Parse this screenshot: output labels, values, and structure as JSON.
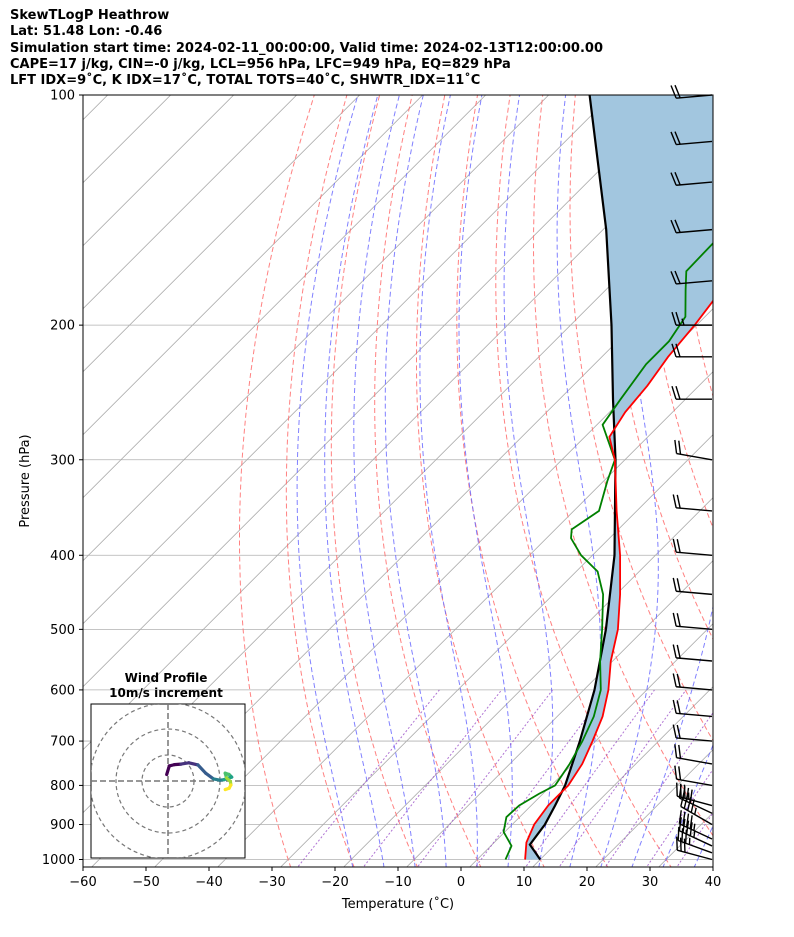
{
  "header": {
    "lines": [
      "SkewTLogP Heathrow",
      "Lat: 51.48   Lon: -0.46",
      "Simulation start time: 2024-02-11_00:00:00, Valid time: 2024-02-13T12:00:00.00",
      "CAPE=17 j/kg, CIN=-0 j/kg, LCL=956 hPa, LFC=949 hPa, EQ=829 hPa",
      "LFT IDX=9˚C, K IDX=17˚C, TOTAL TOTS=40˚C, SHWTR_IDX=11˚C"
    ]
  },
  "chart_data": {
    "type": "line",
    "subtype": "skew-t log-p",
    "xlabel": "Temperature (˚C)",
    "ylabel": "Pressure (hPa)",
    "x_ticks": [
      -60,
      -50,
      -40,
      -30,
      -20,
      -10,
      0,
      10,
      20,
      30,
      40
    ],
    "x_tick_labels": [
      "−60",
      "−50",
      "−40",
      "−30",
      "−20",
      "−10",
      "0",
      "10",
      "20",
      "30",
      "40"
    ],
    "y_ticks": [
      100,
      200,
      300,
      400,
      500,
      600,
      700,
      800,
      900,
      1000
    ],
    "y_tick_labels": [
      "100",
      "200",
      "300",
      "400",
      "500",
      "600",
      "700",
      "800",
      "900",
      "1000"
    ],
    "xlim": [
      -60,
      40
    ],
    "ylim": [
      1050,
      100
    ],
    "skew_degrees": 45,
    "grid": true,
    "colors": {
      "temperature": "#ff0000",
      "dewpoint": "#008000",
      "parcel": "#000000",
      "cape_fill": "#a2c6df",
      "dry_adiabat": "#ff6b6b",
      "moist_adiabat": "#6b6bff",
      "mixing_ratio": "#9b50c8",
      "isotherm": "#aaaaaa"
    },
    "series": [
      {
        "id": "temperature",
        "pressure": [
          1000,
          950,
          900,
          850,
          800,
          750,
          700,
          650,
          600,
          550,
          500,
          450,
          400,
          350,
          300,
          280,
          260,
          240,
          220,
          200,
          185,
          170,
          155,
          140,
          125,
          115,
          100
        ],
        "temp": [
          7.6,
          5.1,
          3.5,
          2.7,
          2.7,
          1.5,
          -0.5,
          -2.8,
          -6.1,
          -10.3,
          -14.2,
          -19.4,
          -25.6,
          -33.2,
          -41.6,
          -46.1,
          -47.5,
          -48.2,
          -49.5,
          -50.3,
          -51.3,
          -52.6,
          -54.3,
          -55.8,
          -56.8,
          -57.2,
          -58.2
        ]
      },
      {
        "id": "dewpoint",
        "pressure": [
          1000,
          960,
          920,
          880,
          850,
          820,
          800,
          750,
          700,
          650,
          600,
          550,
          500,
          450,
          420,
          400,
          380,
          370,
          350,
          320,
          300,
          270,
          250,
          225,
          210,
          195,
          180,
          170,
          130,
          100
        ],
        "temp": [
          4.5,
          3.3,
          -0.2,
          -2.1,
          -1.9,
          -0.6,
          0.6,
          -0.5,
          -2.1,
          -4.2,
          -7.3,
          -12.0,
          -16.7,
          -22.1,
          -26.6,
          -31.8,
          -36.1,
          -37.4,
          -36.0,
          -39.4,
          -41.6,
          -49.1,
          -50.3,
          -51.8,
          -51.8,
          -53.1,
          -57.3,
          -60.2,
          -60.8,
          -63.0
        ]
      },
      {
        "id": "parcel",
        "pressure": [
          1000,
          956,
          900,
          850,
          800,
          700,
          600,
          500,
          400,
          300,
          250,
          200,
          150,
          100
        ],
        "temp": [
          10.0,
          6.0,
          5.2,
          3.8,
          2.2,
          -2.5,
          -8.3,
          -16.1,
          -26.5,
          -41.5,
          -51.5,
          -63.5,
          -79.5,
          -103.5
        ]
      }
    ],
    "wind_barbs": [
      {
        "pressure": 1000,
        "speed_kt": 30,
        "direction_deg": 285
      },
      {
        "pressure": 980,
        "speed_kt": 35,
        "direction_deg": 290
      },
      {
        "pressure": 960,
        "speed_kt": 45,
        "direction_deg": 295
      },
      {
        "pressure": 940,
        "speed_kt": 45,
        "direction_deg": 295
      },
      {
        "pressure": 900,
        "speed_kt": 45,
        "direction_deg": 300
      },
      {
        "pressure": 870,
        "speed_kt": 40,
        "direction_deg": 295
      },
      {
        "pressure": 850,
        "speed_kt": 35,
        "direction_deg": 285
      },
      {
        "pressure": 800,
        "speed_kt": 20,
        "direction_deg": 280
      },
      {
        "pressure": 750,
        "speed_kt": 20,
        "direction_deg": 280
      },
      {
        "pressure": 700,
        "speed_kt": 20,
        "direction_deg": 275
      },
      {
        "pressure": 650,
        "speed_kt": 20,
        "direction_deg": 275
      },
      {
        "pressure": 600,
        "speed_kt": 20,
        "direction_deg": 275
      },
      {
        "pressure": 550,
        "speed_kt": 20,
        "direction_deg": 275
      },
      {
        "pressure": 500,
        "speed_kt": 20,
        "direction_deg": 275
      },
      {
        "pressure": 450,
        "speed_kt": 20,
        "direction_deg": 275
      },
      {
        "pressure": 400,
        "speed_kt": 20,
        "direction_deg": 275
      },
      {
        "pressure": 350,
        "speed_kt": 20,
        "direction_deg": 275
      },
      {
        "pressure": 300,
        "speed_kt": 20,
        "direction_deg": 280
      },
      {
        "pressure": 250,
        "speed_kt": 20,
        "direction_deg": 270
      },
      {
        "pressure": 220,
        "speed_kt": 20,
        "direction_deg": 270
      },
      {
        "pressure": 200,
        "speed_kt": 25,
        "direction_deg": 270
      },
      {
        "pressure": 175,
        "speed_kt": 20,
        "direction_deg": 265
      },
      {
        "pressure": 150,
        "speed_kt": 20,
        "direction_deg": 265
      },
      {
        "pressure": 130,
        "speed_kt": 20,
        "direction_deg": 265
      },
      {
        "pressure": 115,
        "speed_kt": 20,
        "direction_deg": 265
      },
      {
        "pressure": 100,
        "speed_kt": 20,
        "direction_deg": 265
      }
    ],
    "inset": {
      "title": "Wind Profile",
      "subtitle": "10m/s increment",
      "rings_ms": [
        10,
        20,
        30
      ],
      "hodograph_uv_ms": [
        [
          -0.5,
          2.5
        ],
        [
          0.5,
          5.8
        ],
        [
          2.5,
          6.3
        ],
        [
          5,
          6.5
        ],
        [
          8,
          7
        ],
        [
          11.5,
          6.2
        ],
        [
          14.5,
          3.0
        ],
        [
          17.5,
          0.8
        ],
        [
          20,
          0.3
        ],
        [
          21.5,
          0.5
        ],
        [
          23,
          1.0
        ],
        [
          24.5,
          1.5
        ],
        [
          23.5,
          2.5
        ],
        [
          22,
          3.0
        ],
        [
          22.5,
          1.2
        ],
        [
          24,
          -0.2
        ],
        [
          24.2,
          -1.5
        ],
        [
          23.5,
          -2.8
        ],
        [
          22,
          -3.3
        ]
      ]
    }
  }
}
